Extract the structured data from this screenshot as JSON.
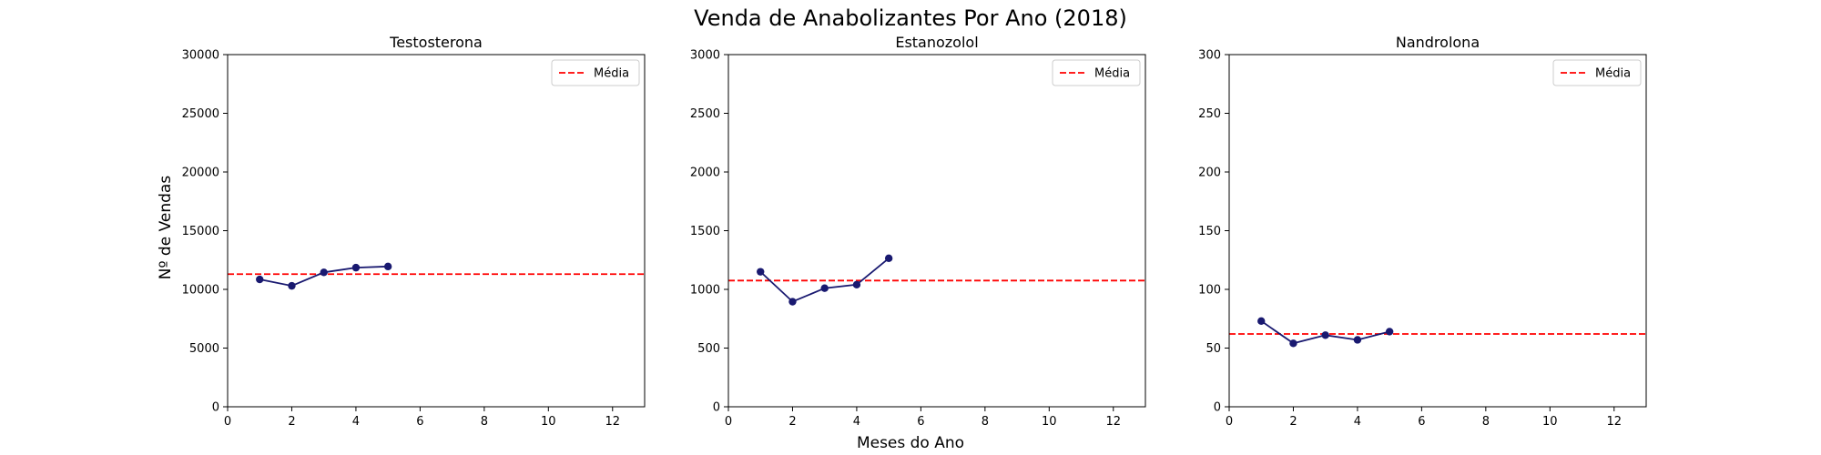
{
  "figure": {
    "title": "Venda de Anabolizantes Por Ano (2018)",
    "xlabel": "Meses do Ano",
    "ylabel": "Nº de Vendas"
  },
  "chart_data": [
    {
      "type": "line",
      "title": "Testosterona",
      "x": [
        1,
        2,
        3,
        4,
        5
      ],
      "series": [
        {
          "values": [
            10850,
            10300,
            11450,
            11850,
            11950
          ],
          "color": "#191970"
        }
      ],
      "mean": {
        "label": "Média",
        "value": 11300,
        "color": "#ff0000"
      },
      "xlim": [
        0,
        13
      ],
      "ylim": [
        0,
        30000
      ],
      "xticks": [
        0,
        2,
        4,
        6,
        8,
        10,
        12
      ],
      "yticks": [
        0,
        5000,
        10000,
        15000,
        20000,
        25000,
        30000
      ],
      "legend": "top-right"
    },
    {
      "type": "line",
      "title": "Estanozolol",
      "x": [
        1,
        2,
        3,
        4,
        5
      ],
      "series": [
        {
          "values": [
            1150,
            895,
            1010,
            1040,
            1265
          ],
          "color": "#191970"
        }
      ],
      "mean": {
        "label": "Média",
        "value": 1075,
        "color": "#ff0000"
      },
      "xlim": [
        0,
        13
      ],
      "ylim": [
        0,
        3000
      ],
      "xticks": [
        0,
        2,
        4,
        6,
        8,
        10,
        12
      ],
      "yticks": [
        0,
        500,
        1000,
        1500,
        2000,
        2500,
        3000
      ],
      "legend": "top-right"
    },
    {
      "type": "line",
      "title": "Nandrolona",
      "x": [
        1,
        2,
        3,
        4,
        5
      ],
      "series": [
        {
          "values": [
            73,
            54,
            61,
            57,
            64
          ],
          "color": "#191970"
        }
      ],
      "mean": {
        "label": "Média",
        "value": 62,
        "color": "#ff0000"
      },
      "xlim": [
        0,
        13
      ],
      "ylim": [
        0,
        300
      ],
      "xticks": [
        0,
        2,
        4,
        6,
        8,
        10,
        12
      ],
      "yticks": [
        0,
        50,
        100,
        150,
        200,
        250,
        300
      ],
      "legend": "top-right"
    }
  ]
}
